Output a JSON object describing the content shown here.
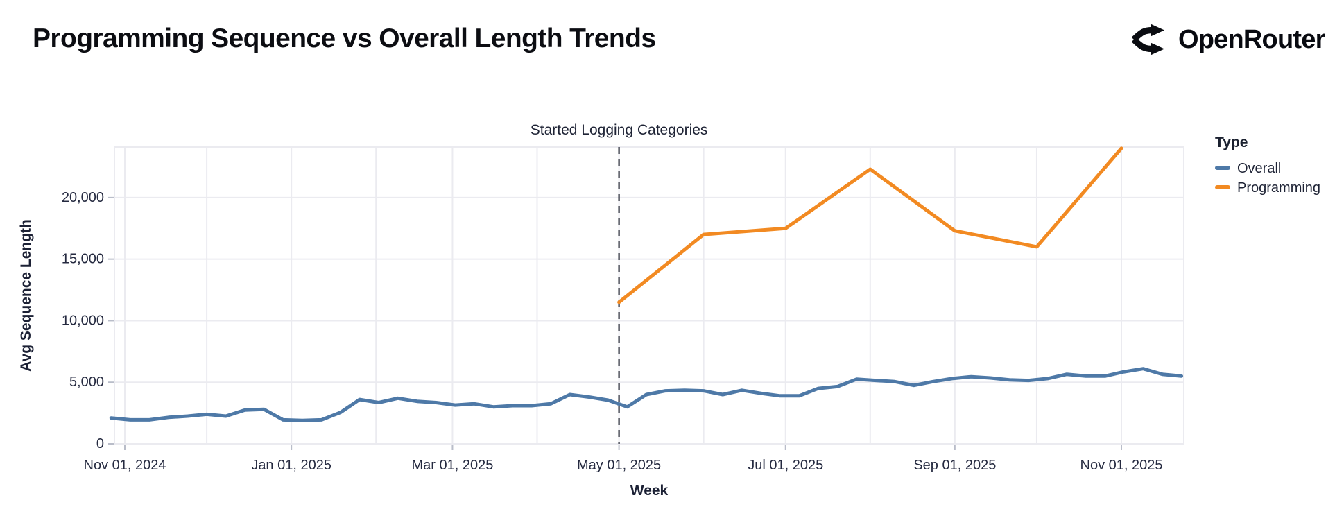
{
  "header": {
    "title": "Programming Sequence vs Overall Length Trends",
    "logo_text": "OpenRouter",
    "logo_icon": "openrouter-fork-arrows-icon"
  },
  "chart_data": {
    "type": "line",
    "title": "Programming Sequence vs Overall Length Trends",
    "xlabel": "Week",
    "ylabel": "Avg Sequence Length",
    "ylim": [
      0,
      24200
    ],
    "grid": "both",
    "legend_position": "right",
    "x_ticks": [
      "Nov 01, 2024",
      "Jan 01, 2025",
      "Mar 01, 2025",
      "May 01, 2025",
      "Jul 01, 2025",
      "Sep 01, 2025",
      "Nov 01, 2025"
    ],
    "y_ticks": [
      {
        "value": 0,
        "label": "0"
      },
      {
        "value": 5000,
        "label": "5,000"
      },
      {
        "value": 10000,
        "label": "10,000"
      },
      {
        "value": 15000,
        "label": "15,000"
      },
      {
        "value": 20000,
        "label": "20,000"
      }
    ],
    "legend": {
      "title": "Type",
      "entries": [
        {
          "label": "Overall",
          "color": "#4e79a7"
        },
        {
          "label": "Programming",
          "color": "#f28a22"
        }
      ]
    },
    "annotation": {
      "label": "Started Logging Categories",
      "date": "2025-05-01"
    },
    "series": [
      {
        "name": "Overall",
        "color": "#4e79a7",
        "start_date": "2024-10-27",
        "interval_days": 7,
        "values": [
          2100,
          1950,
          1950,
          2150,
          2250,
          2400,
          2250,
          2750,
          2800,
          1950,
          1900,
          1950,
          2550,
          3600,
          3350,
          3700,
          3450,
          3350,
          3150,
          3250,
          3000,
          3100,
          3100,
          3250,
          4000,
          3800,
          3550,
          3000,
          4000,
          4300,
          4350,
          4300,
          4000,
          4350,
          4100,
          3900,
          3900,
          4500,
          4650,
          5250,
          5150,
          5050,
          4750,
          5050,
          5300,
          5450,
          5350,
          5200,
          5150,
          5300,
          5650,
          5500,
          5500,
          5850,
          6100,
          5650,
          5500
        ]
      },
      {
        "name": "Programming",
        "color": "#f28a22",
        "dates": [
          "2025-05-01",
          "2025-06-01",
          "2025-07-01",
          "2025-08-01",
          "2025-09-01",
          "2025-10-01",
          "2025-11-01"
        ],
        "values": [
          11500,
          17000,
          17500,
          22300,
          17300,
          16000,
          24000
        ]
      }
    ]
  }
}
